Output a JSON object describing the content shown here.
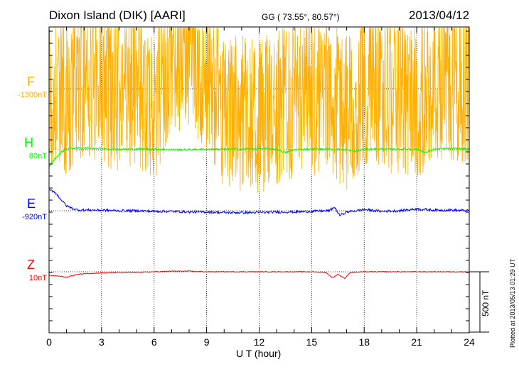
{
  "header": {
    "station": "Dixon Island (DIK)  [AARI]",
    "coords": "GG ( 73.55°,  80.57°)",
    "date": "2013/04/12"
  },
  "footer": {
    "plotted": "Plotted at 2013/05/13 01:29 UT"
  },
  "chart_data": {
    "type": "line",
    "title": "Dixon Island (DIK)  [AARI]",
    "xlabel": "U T (hour)",
    "xlim": [
      0,
      24
    ],
    "xticks": [
      "0",
      "3",
      "6",
      "9",
      "12",
      "15",
      "18",
      "21",
      "24"
    ],
    "scale_bar_label": "500 nT",
    "scale_bar_nT": 500,
    "tick_interval_nT": 100,
    "grid": "dotted vertical every 3 h, dotted baseline per component",
    "series": [
      {
        "name": "F",
        "baseline_label": "-1300nT",
        "color": "#ffb000",
        "noise_nT": 650,
        "hours": [
          0,
          1,
          2,
          3,
          4,
          5,
          6,
          7,
          8,
          9,
          10,
          11,
          12,
          13,
          14,
          15,
          16,
          17,
          18,
          19,
          20,
          21,
          22,
          23,
          24
        ],
        "values": [
          0,
          -100,
          100,
          0,
          -50,
          0,
          -150,
          300,
          300,
          150,
          -200,
          -200,
          -250,
          -150,
          -100,
          -100,
          -50,
          -200,
          0,
          0,
          -100,
          -100,
          0,
          50,
          0
        ]
      },
      {
        "name": "H",
        "baseline_label": "80nT",
        "color": "#00ff00",
        "noise_nT": 8,
        "hours": [
          0,
          0.3,
          0.7,
          1,
          2,
          3,
          4,
          5,
          6,
          7,
          8,
          9,
          10,
          11,
          12,
          13,
          13.5,
          14,
          15,
          16,
          17,
          17.5,
          18,
          19,
          20,
          21,
          21.5,
          22,
          23,
          24
        ],
        "values": [
          -140,
          -80,
          -20,
          10,
          15,
          10,
          5,
          5,
          5,
          0,
          0,
          5,
          5,
          5,
          10,
          5,
          -25,
          0,
          5,
          5,
          0,
          -15,
          5,
          5,
          5,
          5,
          -25,
          5,
          10,
          5
        ]
      },
      {
        "name": "E",
        "baseline_label": "-920nT",
        "color": "#0000ff",
        "noise_nT": 10,
        "hours": [
          0,
          0.3,
          0.7,
          1,
          1.5,
          2,
          3,
          4,
          5,
          6,
          7,
          8,
          9,
          10,
          11,
          12,
          13,
          14,
          15,
          16,
          16.3,
          16.6,
          17,
          18,
          19,
          20,
          21,
          22,
          23,
          24
        ],
        "values": [
          170,
          160,
          90,
          40,
          10,
          5,
          5,
          0,
          0,
          -5,
          -5,
          -10,
          -10,
          -15,
          -15,
          -15,
          -10,
          -10,
          -5,
          0,
          30,
          -40,
          -10,
          10,
          -5,
          0,
          15,
          5,
          5,
          0
        ]
      },
      {
        "name": "Z",
        "baseline_label": "10nT",
        "color": "#ff0000",
        "noise_nT": 3,
        "hours": [
          0,
          0.5,
          1,
          1.5,
          2,
          3,
          4,
          5,
          6,
          7,
          8,
          9,
          10,
          11,
          12,
          13,
          14,
          15,
          15.8,
          16.2,
          16.5,
          16.9,
          17.2,
          18,
          19,
          20,
          21,
          22,
          23,
          24
        ],
        "values": [
          -30,
          -35,
          -45,
          -25,
          -15,
          -10,
          -5,
          -5,
          0,
          5,
          5,
          0,
          0,
          0,
          0,
          0,
          0,
          0,
          -5,
          -50,
          -20,
          -55,
          -5,
          0,
          0,
          0,
          0,
          0,
          0,
          0
        ]
      }
    ]
  }
}
